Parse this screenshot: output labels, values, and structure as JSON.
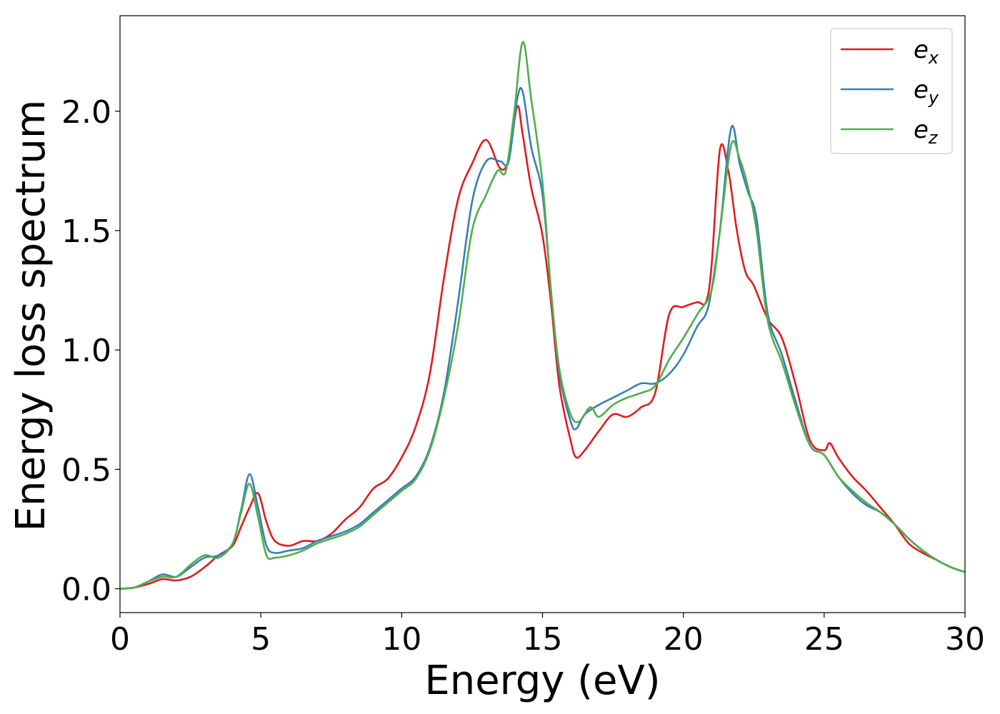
{
  "chart_data": {
    "type": "line",
    "title": "",
    "xlabel": "Energy (eV)",
    "ylabel": "Energy loss spectrum",
    "xlim": [
      0,
      30
    ],
    "ylim": [
      -0.1,
      2.4
    ],
    "xticks": [
      0,
      5,
      10,
      15,
      20,
      25,
      30
    ],
    "xtick_labels": [
      "0",
      "5",
      "10",
      "15",
      "20",
      "25",
      "30"
    ],
    "yticks": [
      0.0,
      0.5,
      1.0,
      1.5,
      2.0
    ],
    "ytick_labels": [
      "0.0",
      "0.5",
      "1.0",
      "1.5",
      "2.0"
    ],
    "grid": false,
    "legend_position": "top-right",
    "series": [
      {
        "name": "e_x",
        "legend_main": "e",
        "legend_sub": "x",
        "color": "#e41a1c",
        "x": [
          0,
          0.5,
          1.0,
          1.5,
          2.0,
          2.5,
          3.0,
          3.5,
          4.0,
          4.3,
          4.6,
          4.9,
          5.2,
          5.5,
          6.0,
          6.5,
          7.0,
          7.5,
          8.0,
          8.5,
          9.0,
          9.5,
          10.0,
          10.5,
          11.0,
          11.5,
          12.0,
          12.5,
          13.0,
          13.5,
          13.8,
          14.1,
          14.3,
          14.6,
          15.0,
          15.3,
          15.6,
          16.0,
          16.2,
          16.5,
          17.0,
          17.5,
          18.0,
          18.5,
          19.0,
          19.5,
          20.0,
          20.5,
          20.8,
          21.0,
          21.3,
          21.6,
          21.9,
          22.2,
          22.5,
          23.0,
          23.5,
          24.0,
          24.5,
          25.0,
          25.2,
          25.5,
          26.0,
          26.5,
          27.0,
          27.5,
          28.0,
          28.5,
          29.0,
          29.5,
          30.0
        ],
        "y": [
          0.0,
          0.005,
          0.02,
          0.04,
          0.035,
          0.05,
          0.09,
          0.14,
          0.18,
          0.26,
          0.34,
          0.4,
          0.28,
          0.2,
          0.18,
          0.2,
          0.2,
          0.23,
          0.29,
          0.34,
          0.42,
          0.46,
          0.55,
          0.68,
          0.9,
          1.3,
          1.63,
          1.78,
          1.88,
          1.76,
          1.8,
          2.02,
          1.9,
          1.68,
          1.48,
          1.2,
          0.85,
          0.62,
          0.55,
          0.58,
          0.66,
          0.73,
          0.72,
          0.76,
          0.82,
          1.15,
          1.18,
          1.2,
          1.2,
          1.35,
          1.84,
          1.75,
          1.5,
          1.33,
          1.27,
          1.13,
          1.05,
          0.85,
          0.62,
          0.58,
          0.61,
          0.55,
          0.47,
          0.41,
          0.34,
          0.27,
          0.19,
          0.15,
          0.12,
          0.09,
          0.07
        ]
      },
      {
        "name": "e_y",
        "legend_main": "e",
        "legend_sub": "y",
        "color": "#377eb8",
        "x": [
          0,
          0.5,
          1.0,
          1.5,
          2.0,
          2.5,
          3.0,
          3.5,
          4.0,
          4.3,
          4.6,
          4.9,
          5.2,
          5.5,
          6.0,
          6.5,
          7.0,
          7.5,
          8.0,
          8.5,
          9.0,
          9.5,
          10.0,
          10.5,
          11.0,
          11.5,
          12.0,
          12.5,
          13.0,
          13.5,
          13.8,
          14.1,
          14.3,
          14.6,
          15.0,
          15.3,
          15.6,
          16.0,
          16.2,
          16.5,
          17.0,
          17.5,
          18.0,
          18.5,
          19.0,
          19.5,
          20.0,
          20.5,
          20.8,
          21.0,
          21.3,
          21.7,
          22.0,
          22.3,
          22.6,
          23.0,
          23.5,
          24.0,
          24.5,
          25.0,
          25.5,
          26.0,
          26.5,
          27.0,
          27.5,
          28.0,
          28.5,
          29.0,
          29.5,
          30.0
        ],
        "y": [
          0.0,
          0.005,
          0.03,
          0.06,
          0.05,
          0.09,
          0.13,
          0.14,
          0.19,
          0.33,
          0.48,
          0.34,
          0.18,
          0.15,
          0.16,
          0.17,
          0.2,
          0.22,
          0.24,
          0.27,
          0.32,
          0.37,
          0.42,
          0.47,
          0.59,
          0.82,
          1.2,
          1.62,
          1.79,
          1.79,
          1.79,
          2.05,
          2.08,
          1.85,
          1.65,
          1.25,
          0.9,
          0.7,
          0.67,
          0.73,
          0.77,
          0.8,
          0.83,
          0.86,
          0.86,
          0.9,
          0.98,
          1.1,
          1.15,
          1.25,
          1.5,
          1.93,
          1.78,
          1.66,
          1.55,
          1.15,
          0.98,
          0.78,
          0.6,
          0.56,
          0.47,
          0.4,
          0.35,
          0.32,
          0.27,
          0.21,
          0.16,
          0.12,
          0.09,
          0.07
        ]
      },
      {
        "name": "e_z",
        "legend_main": "e",
        "legend_sub": "z",
        "color": "#4daf4a",
        "x": [
          0,
          0.5,
          1.0,
          1.5,
          2.0,
          2.5,
          3.0,
          3.5,
          4.0,
          4.3,
          4.6,
          4.9,
          5.2,
          5.5,
          6.0,
          6.5,
          7.0,
          7.5,
          8.0,
          8.5,
          9.0,
          9.5,
          10.0,
          10.5,
          11.0,
          11.5,
          12.0,
          12.5,
          13.0,
          13.4,
          13.7,
          14.0,
          14.3,
          14.6,
          15.0,
          15.3,
          15.6,
          16.0,
          16.3,
          16.7,
          17.0,
          17.5,
          18.0,
          18.5,
          19.0,
          19.5,
          20.0,
          20.5,
          21.0,
          21.3,
          21.7,
          22.0,
          22.3,
          22.6,
          23.0,
          23.5,
          24.0,
          24.5,
          25.0,
          25.5,
          26.0,
          26.5,
          27.0,
          27.5,
          28.0,
          28.5,
          29.0,
          29.5,
          30.0
        ],
        "y": [
          0.0,
          0.005,
          0.03,
          0.05,
          0.05,
          0.1,
          0.14,
          0.13,
          0.19,
          0.32,
          0.44,
          0.3,
          0.14,
          0.13,
          0.14,
          0.16,
          0.19,
          0.21,
          0.23,
          0.26,
          0.31,
          0.36,
          0.41,
          0.46,
          0.58,
          0.8,
          1.1,
          1.5,
          1.65,
          1.75,
          1.75,
          2.0,
          2.29,
          2.05,
          1.7,
          1.25,
          0.92,
          0.73,
          0.7,
          0.76,
          0.72,
          0.77,
          0.8,
          0.82,
          0.85,
          0.96,
          1.05,
          1.15,
          1.25,
          1.5,
          1.86,
          1.8,
          1.68,
          1.5,
          1.12,
          0.95,
          0.76,
          0.6,
          0.56,
          0.47,
          0.41,
          0.36,
          0.32,
          0.27,
          0.21,
          0.16,
          0.12,
          0.09,
          0.07
        ]
      }
    ]
  }
}
